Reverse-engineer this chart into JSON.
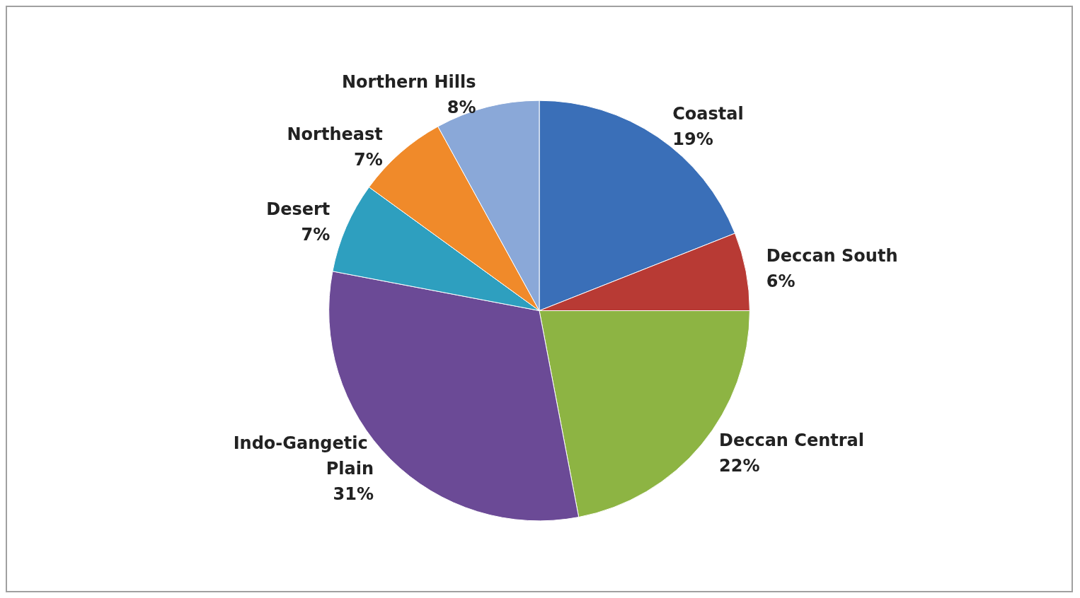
{
  "chart_data": {
    "type": "pie",
    "categories": [
      "Coastal",
      "Deccan South",
      "Deccan Central",
      "Indo-Gangetic Plain",
      "Desert",
      "Northeast",
      "Northern Hills"
    ],
    "values": [
      19,
      6,
      22,
      31,
      7,
      7,
      8
    ],
    "colors": [
      "#3a6fb8",
      "#b83a34",
      "#8db443",
      "#6b4a96",
      "#2e9fbf",
      "#f08a2a",
      "#8aa8d8"
    ],
    "value_labels": [
      "19%",
      "6%",
      "22%",
      "31%",
      "7%",
      "7%",
      "8%"
    ]
  }
}
